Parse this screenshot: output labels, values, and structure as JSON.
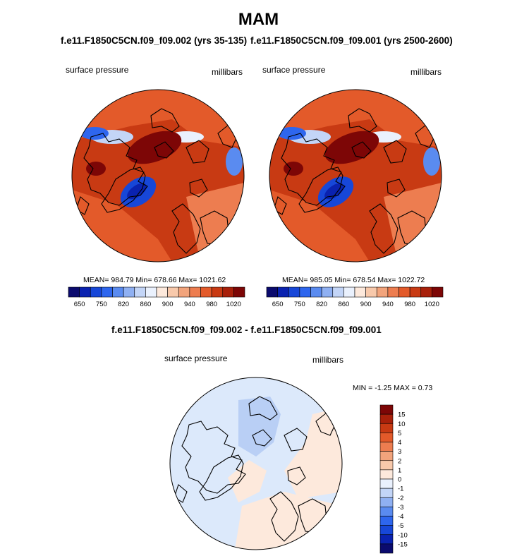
{
  "title": "MAM",
  "panels": [
    {
      "run": "f.e11.F1850C5CN.f09_f09.002 (yrs 35-135)",
      "variable": "surface pressure",
      "units": "millibars",
      "stats": "MEAN= 984.79  Min= 678.66  Max= 1021.62"
    },
    {
      "run": "f.e11.F1850C5CN.f09_f09.001 (yrs 2500-2600)",
      "variable": "surface pressure",
      "units": "millibars",
      "stats": "MEAN= 985.05  Min= 678.54  Max= 1022.72"
    }
  ],
  "diff_panel": {
    "title": "f.e11.F1850C5CN.f09_f09.002 - f.e11.F1850C5CN.f09_f09.001",
    "variable": "surface pressure",
    "units": "millibars",
    "stats": "MIN =  -1.25 MAX =   0.73"
  },
  "colorbar": {
    "colors": [
      "#0b0b6e",
      "#0a22b0",
      "#1747d8",
      "#2e66ee",
      "#5a8bf0",
      "#8fb0f2",
      "#c3d5f7",
      "#eaf1fd",
      "#fde9dc",
      "#f8c9ab",
      "#f2a47c",
      "#ed7d50",
      "#e35a2a",
      "#c83a13",
      "#a8200a",
      "#7d0606"
    ],
    "tick_labels": [
      "650",
      "750",
      "820",
      "860",
      "900",
      "940",
      "980",
      "1020"
    ]
  },
  "diff_colorbar": {
    "colors": [
      "#7d0606",
      "#a8200a",
      "#c83a13",
      "#e35a2a",
      "#ed7d50",
      "#f2a47c",
      "#f8c9ab",
      "#fde9dc",
      "#eaf1fd",
      "#c3d5f7",
      "#8fb0f2",
      "#5a8bf0",
      "#2e66ee",
      "#1747d8",
      "#0a22b0",
      "#0b0b6e"
    ],
    "tick_labels": [
      "15",
      "10",
      "5",
      "4",
      "3",
      "2",
      "1",
      "0",
      "-1",
      "-2",
      "-3",
      "-4",
      "-5",
      "-10",
      "-15"
    ]
  },
  "chart_data": [
    {
      "type": "heatmap",
      "projection": "polar stereographic (north pole)",
      "title": "f.e11.F1850C5CN.f09_f09.002 (yrs 35-135)",
      "variable": "surface pressure",
      "units": "millibars",
      "mean": 984.79,
      "min": 678.66,
      "max": 1021.62,
      "colorbar_levels": [
        650,
        700,
        750,
        800,
        820,
        840,
        860,
        880,
        900,
        920,
        940,
        960,
        980,
        1000,
        1020
      ],
      "colorbar_ticks": [
        650,
        750,
        820,
        860,
        900,
        940,
        980,
        1020
      ]
    },
    {
      "type": "heatmap",
      "projection": "polar stereographic (north pole)",
      "title": "f.e11.F1850C5CN.f09_f09.001 (yrs 2500-2600)",
      "variable": "surface pressure",
      "units": "millibars",
      "mean": 985.05,
      "min": 678.54,
      "max": 1022.72,
      "colorbar_levels": [
        650,
        700,
        750,
        800,
        820,
        840,
        860,
        880,
        900,
        920,
        940,
        960,
        980,
        1000,
        1020
      ],
      "colorbar_ticks": [
        650,
        750,
        820,
        860,
        900,
        940,
        980,
        1020
      ]
    },
    {
      "type": "heatmap",
      "projection": "polar stereographic (north pole)",
      "title": "f.e11.F1850C5CN.f09_f09.002 - f.e11.F1850C5CN.f09_f09.001",
      "variable": "surface pressure",
      "units": "millibars",
      "min": -1.25,
      "max": 0.73,
      "colorbar_ticks": [
        15,
        10,
        5,
        4,
        3,
        2,
        1,
        0,
        -1,
        -2,
        -3,
        -4,
        -5,
        -10,
        -15
      ]
    }
  ]
}
